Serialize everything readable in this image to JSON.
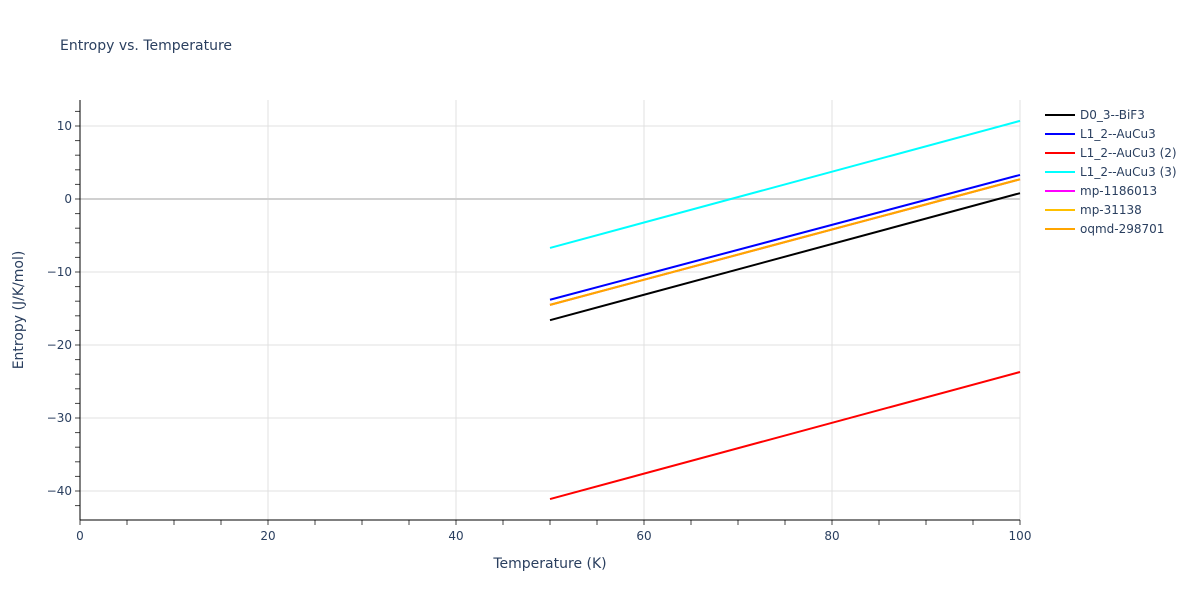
{
  "chart_data": {
    "type": "line",
    "title": "Entropy vs. Temperature",
    "xlabel": "Temperature (K)",
    "ylabel": "Entropy (J/K/mol)",
    "xlim": [
      0,
      100
    ],
    "ylim": [
      -44,
      13.5
    ],
    "x_ticks": [
      0,
      20,
      40,
      60,
      80,
      100
    ],
    "y_ticks": [
      -40,
      -30,
      -20,
      -10,
      0,
      10
    ],
    "grid": true,
    "legend_position": "right",
    "series": [
      {
        "name": "D0_3--BiF3",
        "color": "#000000",
        "x": [
          50,
          100
        ],
        "values": [
          -16.6,
          0.8
        ]
      },
      {
        "name": "L1_2--AuCu3",
        "color": "#0000ff",
        "x": [
          50,
          100
        ],
        "values": [
          -13.8,
          3.3
        ]
      },
      {
        "name": "L1_2--AuCu3 (2)",
        "color": "#ff0000",
        "x": [
          50,
          100
        ],
        "values": [
          -41.1,
          -23.7
        ]
      },
      {
        "name": "L1_2--AuCu3 (3)",
        "color": "#00ffff",
        "x": [
          50,
          100
        ],
        "values": [
          -6.7,
          10.7
        ]
      },
      {
        "name": "mp-1186013",
        "color": "#ff00ff",
        "x": [
          50,
          100
        ],
        "values": [
          -14.5,
          2.7
        ]
      },
      {
        "name": "mp-31138",
        "color": "#ffc000",
        "x": [
          50,
          100
        ],
        "values": [
          -14.5,
          2.7
        ]
      },
      {
        "name": "oqmd-298701",
        "color": "#ffa500",
        "x": [
          50,
          100
        ],
        "values": [
          -14.5,
          2.7
        ]
      }
    ]
  }
}
